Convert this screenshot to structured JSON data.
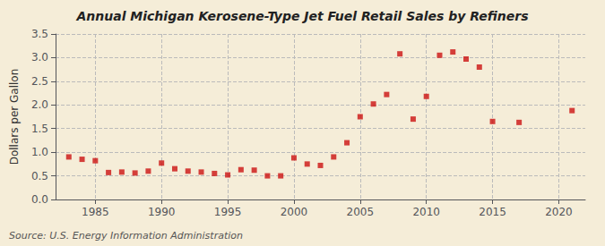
{
  "chart_data": {
    "type": "scatter",
    "title": "Annual Michigan Kerosene-Type Jet Fuel Retail Sales by Refiners",
    "ylabel": "Dollars per Gallon",
    "source": "Source: U.S. Energy Information Administration",
    "x": [
      1983,
      1984,
      1985,
      1986,
      1987,
      1988,
      1989,
      1990,
      1991,
      1992,
      1993,
      1994,
      1995,
      1996,
      1997,
      1998,
      1999,
      2000,
      2001,
      2002,
      2003,
      2004,
      2005,
      2006,
      2007,
      2008,
      2009,
      2010,
      2011,
      2012,
      2013,
      2014,
      2015,
      2017,
      2021
    ],
    "values": [
      0.9,
      0.85,
      0.82,
      0.57,
      0.58,
      0.56,
      0.6,
      0.77,
      0.65,
      0.6,
      0.58,
      0.55,
      0.52,
      0.63,
      0.62,
      0.5,
      0.5,
      0.88,
      0.75,
      0.72,
      0.9,
      1.2,
      1.75,
      2.02,
      2.22,
      3.08,
      1.7,
      2.18,
      3.05,
      3.12,
      2.97,
      2.8,
      1.65,
      1.63,
      1.88
    ],
    "color": "#cc1111",
    "marker": "square",
    "xlim": [
      1982,
      2022
    ],
    "xticks": [
      1985,
      1990,
      1995,
      2000,
      2005,
      2010,
      2015,
      2020
    ],
    "ylim": [
      0.0,
      3.5
    ],
    "yticks": [
      {
        "value": 0.0,
        "label": "0.0"
      },
      0.5,
      {
        "value": 1.0,
        "label": "1.0"
      },
      1.5,
      {
        "value": 2.0,
        "label": "2.0"
      },
      2.5,
      {
        "value": 3.0,
        "label": "3.0"
      },
      3.5
    ],
    "grid": true
  }
}
